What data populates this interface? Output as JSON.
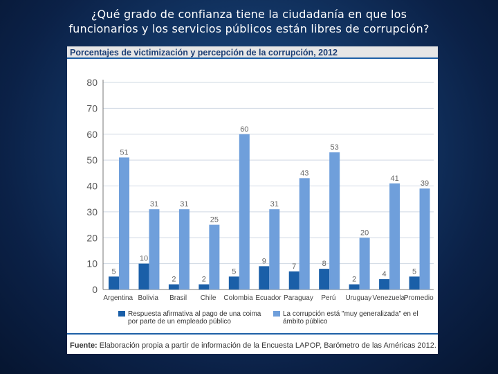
{
  "slide": {
    "title_line1": "¿Qué grado de confianza tiene la ciudadanía en que los",
    "title_line2": "funcionarios y los servicios públicos están libres de corrupción?"
  },
  "figure": {
    "title": "Porcentajes de victimización y percepción de la corrupción, 2012",
    "source_label": "Fuente:",
    "source_text": " Elaboración propia a partir de información de la Encuesta LAPOP, Barómetro de las Américas 2012."
  },
  "colors": {
    "series1": "#1a5fa8",
    "series2": "#6f9fdb",
    "grid": "#cfd8e3",
    "axis_text": "#555555"
  },
  "chart_data": {
    "type": "bar",
    "title": "Porcentajes de victimización y percepción de la corrupción, 2012",
    "categories": [
      "Argentina",
      "Bolivia",
      "Brasil",
      "Chile",
      "Colombia",
      "Ecuador",
      "Paraguay",
      "Perú",
      "Uruguay",
      "Venezuela",
      "Promedio"
    ],
    "series": [
      {
        "name": "Respuesta afirmativa al pago de una coima por parte de un empleado público",
        "values": [
          5,
          10,
          2,
          2,
          5,
          9,
          7,
          8,
          2,
          4,
          5
        ]
      },
      {
        "name": "La corrupción está \"muy generalizada\" en el ámbito público",
        "values": [
          51,
          31,
          31,
          25,
          60,
          31,
          43,
          53,
          20,
          41,
          39
        ]
      }
    ],
    "y_ticks": [
      0,
      10,
      20,
      30,
      40,
      50,
      60,
      70,
      80
    ],
    "ylim": [
      0,
      80
    ],
    "grid": true,
    "legend_position": "bottom"
  }
}
